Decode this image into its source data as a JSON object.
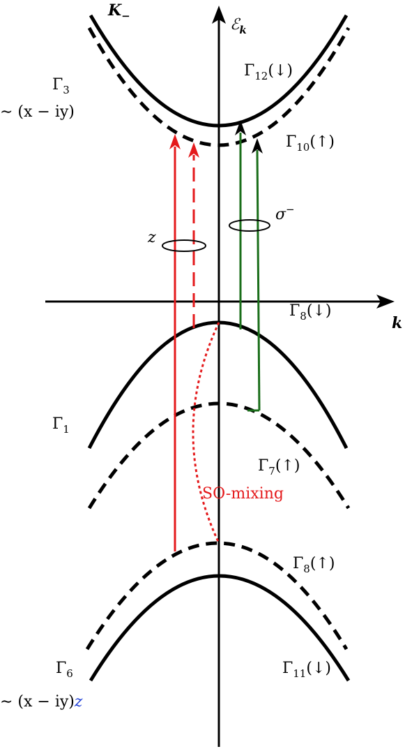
{
  "valley": {
    "symbol": "K",
    "sub": "−"
  },
  "energy_axis": {
    "symbol": "ℰ",
    "sub": "k"
  },
  "momentum_axis": "k",
  "conduction": {
    "orbital": {
      "symbol": "Γ",
      "sub": "3",
      "basis": "∼ (x − iy)"
    },
    "upper": {
      "symbol": "Γ",
      "sub": "12",
      "spin": "(↓)"
    },
    "lower": {
      "symbol": "Γ",
      "sub": "10",
      "spin": "(↑)"
    }
  },
  "polarizations": {
    "linear": "z",
    "circular": {
      "symbol": "σ",
      "sup": "−"
    }
  },
  "valence_top": {
    "orbital": {
      "symbol": "Γ",
      "sub": "1"
    },
    "upper": {
      "symbol": "Γ",
      "sub": "8",
      "spin": "(↓)"
    },
    "lower": {
      "symbol": "Γ",
      "sub": "7",
      "spin": "(↑)"
    }
  },
  "mixing": "SO-mixing",
  "valence_bottom": {
    "orbital": {
      "symbol": "Γ",
      "sub": "6",
      "basis": "∼ (x − iy)",
      "basis_suffix": "z"
    },
    "upper": {
      "symbol": "Γ",
      "sub": "8",
      "spin": "(↑)"
    },
    "lower": {
      "symbol": "Γ",
      "sub": "11",
      "spin": "(↓)"
    }
  }
}
